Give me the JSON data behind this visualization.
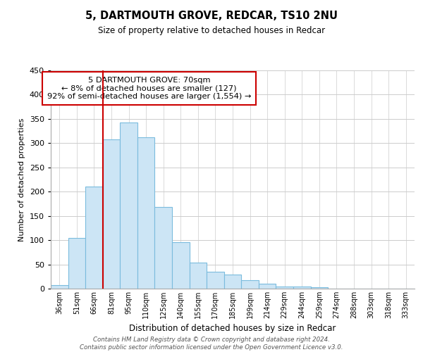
{
  "title": "5, DARTMOUTH GROVE, REDCAR, TS10 2NU",
  "subtitle": "Size of property relative to detached houses in Redcar",
  "xlabel": "Distribution of detached houses by size in Redcar",
  "ylabel": "Number of detached properties",
  "bins": [
    "36sqm",
    "51sqm",
    "66sqm",
    "81sqm",
    "95sqm",
    "110sqm",
    "125sqm",
    "140sqm",
    "155sqm",
    "170sqm",
    "185sqm",
    "199sqm",
    "214sqm",
    "229sqm",
    "244sqm",
    "259sqm",
    "274sqm",
    "288sqm",
    "303sqm",
    "318sqm",
    "333sqm"
  ],
  "values": [
    7,
    105,
    210,
    308,
    342,
    312,
    168,
    96,
    53,
    35,
    29,
    18,
    10,
    5,
    5,
    3,
    0,
    0,
    0,
    0,
    0
  ],
  "bar_color": "#cce5f5",
  "bar_edge_color": "#7bbcde",
  "vline_x_index": 2,
  "vline_color": "#cc0000",
  "annotation_text": "5 DARTMOUTH GROVE: 70sqm\n← 8% of detached houses are smaller (127)\n92% of semi-detached houses are larger (1,554) →",
  "annotation_box_color": "#ffffff",
  "annotation_box_edge_color": "#cc0000",
  "ylim": [
    0,
    450
  ],
  "yticks": [
    0,
    50,
    100,
    150,
    200,
    250,
    300,
    350,
    400,
    450
  ],
  "footer_text": "Contains HM Land Registry data © Crown copyright and database right 2024.\nContains public sector information licensed under the Open Government Licence v3.0.",
  "background_color": "#ffffff",
  "grid_color": "#cccccc"
}
